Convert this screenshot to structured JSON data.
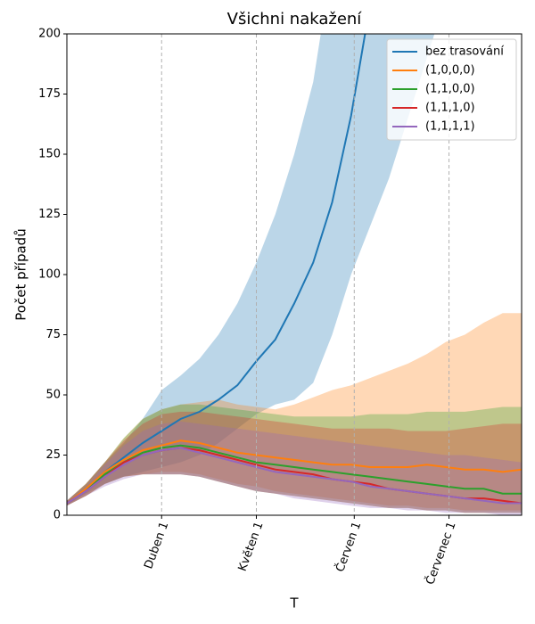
{
  "chart_data": {
    "type": "line",
    "title": "Všichni nakažení",
    "xlabel": "T",
    "ylabel": "Počet případů",
    "x": [
      0,
      6,
      12,
      18,
      24,
      30,
      36,
      42,
      48,
      54,
      60,
      66,
      72,
      78,
      84,
      90,
      96,
      102,
      108,
      114,
      120,
      126,
      132,
      138,
      144
    ],
    "xlim": [
      0,
      144
    ],
    "xticks": [
      {
        "value": 30,
        "label": "Duben 1"
      },
      {
        "value": 60,
        "label": "Květen 1"
      },
      {
        "value": 91,
        "label": "Červen 1"
      },
      {
        "value": 121,
        "label": "Červenec 1"
      }
    ],
    "ylim": [
      0,
      200
    ],
    "yticks": [
      0,
      25,
      50,
      75,
      100,
      125,
      150,
      175,
      200
    ],
    "grid": "x",
    "legend": "upper right",
    "series": [
      {
        "name": "bez trasování",
        "color": "#1f77b4",
        "values": [
          5,
          11,
          18,
          24,
          30,
          35,
          40,
          43,
          48,
          54,
          64,
          73,
          88,
          105,
          130,
          166,
          212,
          null,
          null,
          null,
          null,
          null,
          null,
          null,
          null
        ],
        "upper": [
          6,
          13,
          22,
          30,
          40,
          52,
          58,
          65,
          75,
          88,
          105,
          125,
          150,
          180,
          230,
          260,
          300,
          340,
          380,
          420,
          460,
          null,
          null,
          null,
          null
        ],
        "lower": [
          4,
          9,
          13,
          16,
          18,
          20,
          22,
          25,
          30,
          36,
          42,
          46,
          48,
          55,
          75,
          100,
          120,
          140,
          165,
          190,
          215,
          null,
          null,
          null,
          null
        ]
      },
      {
        "name": "(1,0,0,0)",
        "color": "#ff7f0e",
        "values": [
          5,
          11,
          18,
          23,
          27,
          29,
          31,
          30,
          28,
          26,
          25,
          24,
          23,
          22,
          21,
          21,
          20,
          20,
          20,
          21,
          20,
          19,
          19,
          18,
          19
        ],
        "upper": [
          6,
          13,
          22,
          32,
          40,
          44,
          46,
          47,
          48,
          46,
          45,
          44,
          46,
          49,
          52,
          54,
          57,
          60,
          63,
          67,
          72,
          75,
          80,
          84,
          84
        ],
        "lower": [
          4,
          8,
          13,
          16,
          17,
          18,
          18,
          17,
          15,
          13,
          12,
          10,
          9,
          8,
          7,
          6,
          5,
          4,
          4,
          3,
          3,
          2,
          2,
          2,
          2
        ]
      },
      {
        "name": "(1,1,0,0)",
        "color": "#2ca02c",
        "values": [
          5,
          10,
          17,
          22,
          26,
          28,
          29,
          28,
          26,
          24,
          22,
          21,
          20,
          19,
          18,
          17,
          16,
          15,
          14,
          13,
          12,
          11,
          11,
          9,
          9
        ],
        "upper": [
          6,
          13,
          22,
          32,
          40,
          44,
          46,
          46,
          45,
          44,
          43,
          42,
          41,
          41,
          41,
          41,
          42,
          42,
          42,
          43,
          43,
          43,
          44,
          45,
          45
        ],
        "lower": [
          4,
          8,
          13,
          16,
          17,
          17,
          17,
          16,
          14,
          12,
          10,
          9,
          8,
          7,
          6,
          5,
          4,
          3,
          3,
          2,
          2,
          1,
          1,
          1,
          1
        ]
      },
      {
        "name": "(1,1,1,0)",
        "color": "#d62728",
        "values": [
          5,
          10,
          16,
          22,
          25,
          27,
          28,
          27,
          25,
          23,
          21,
          19,
          18,
          17,
          15,
          14,
          13,
          11,
          10,
          9,
          8,
          7,
          7,
          6,
          5
        ],
        "upper": [
          6,
          13,
          22,
          31,
          38,
          42,
          43,
          43,
          42,
          41,
          40,
          39,
          38,
          37,
          36,
          36,
          36,
          36,
          35,
          35,
          35,
          36,
          37,
          38,
          38
        ],
        "lower": [
          4,
          8,
          13,
          16,
          17,
          17,
          17,
          16,
          14,
          12,
          10,
          9,
          8,
          7,
          6,
          5,
          4,
          3,
          3,
          2,
          2,
          1,
          1,
          1,
          1
        ]
      },
      {
        "name": "(1,1,1,1)",
        "color": "#9467bd",
        "values": [
          5,
          10,
          16,
          21,
          25,
          27,
          28,
          26,
          24,
          22,
          20,
          18,
          17,
          16,
          15,
          14,
          12,
          11,
          10,
          9,
          8,
          7,
          6,
          5,
          5
        ],
        "upper": [
          6,
          12,
          21,
          29,
          35,
          38,
          39,
          38,
          37,
          36,
          35,
          34,
          33,
          32,
          31,
          30,
          29,
          28,
          27,
          26,
          25,
          25,
          24,
          23,
          22
        ],
        "lower": [
          4,
          8,
          12,
          15,
          17,
          17,
          17,
          16,
          14,
          12,
          10,
          9,
          7,
          6,
          5,
          4,
          3,
          3,
          2,
          2,
          1,
          1,
          1,
          0,
          0
        ]
      }
    ]
  }
}
